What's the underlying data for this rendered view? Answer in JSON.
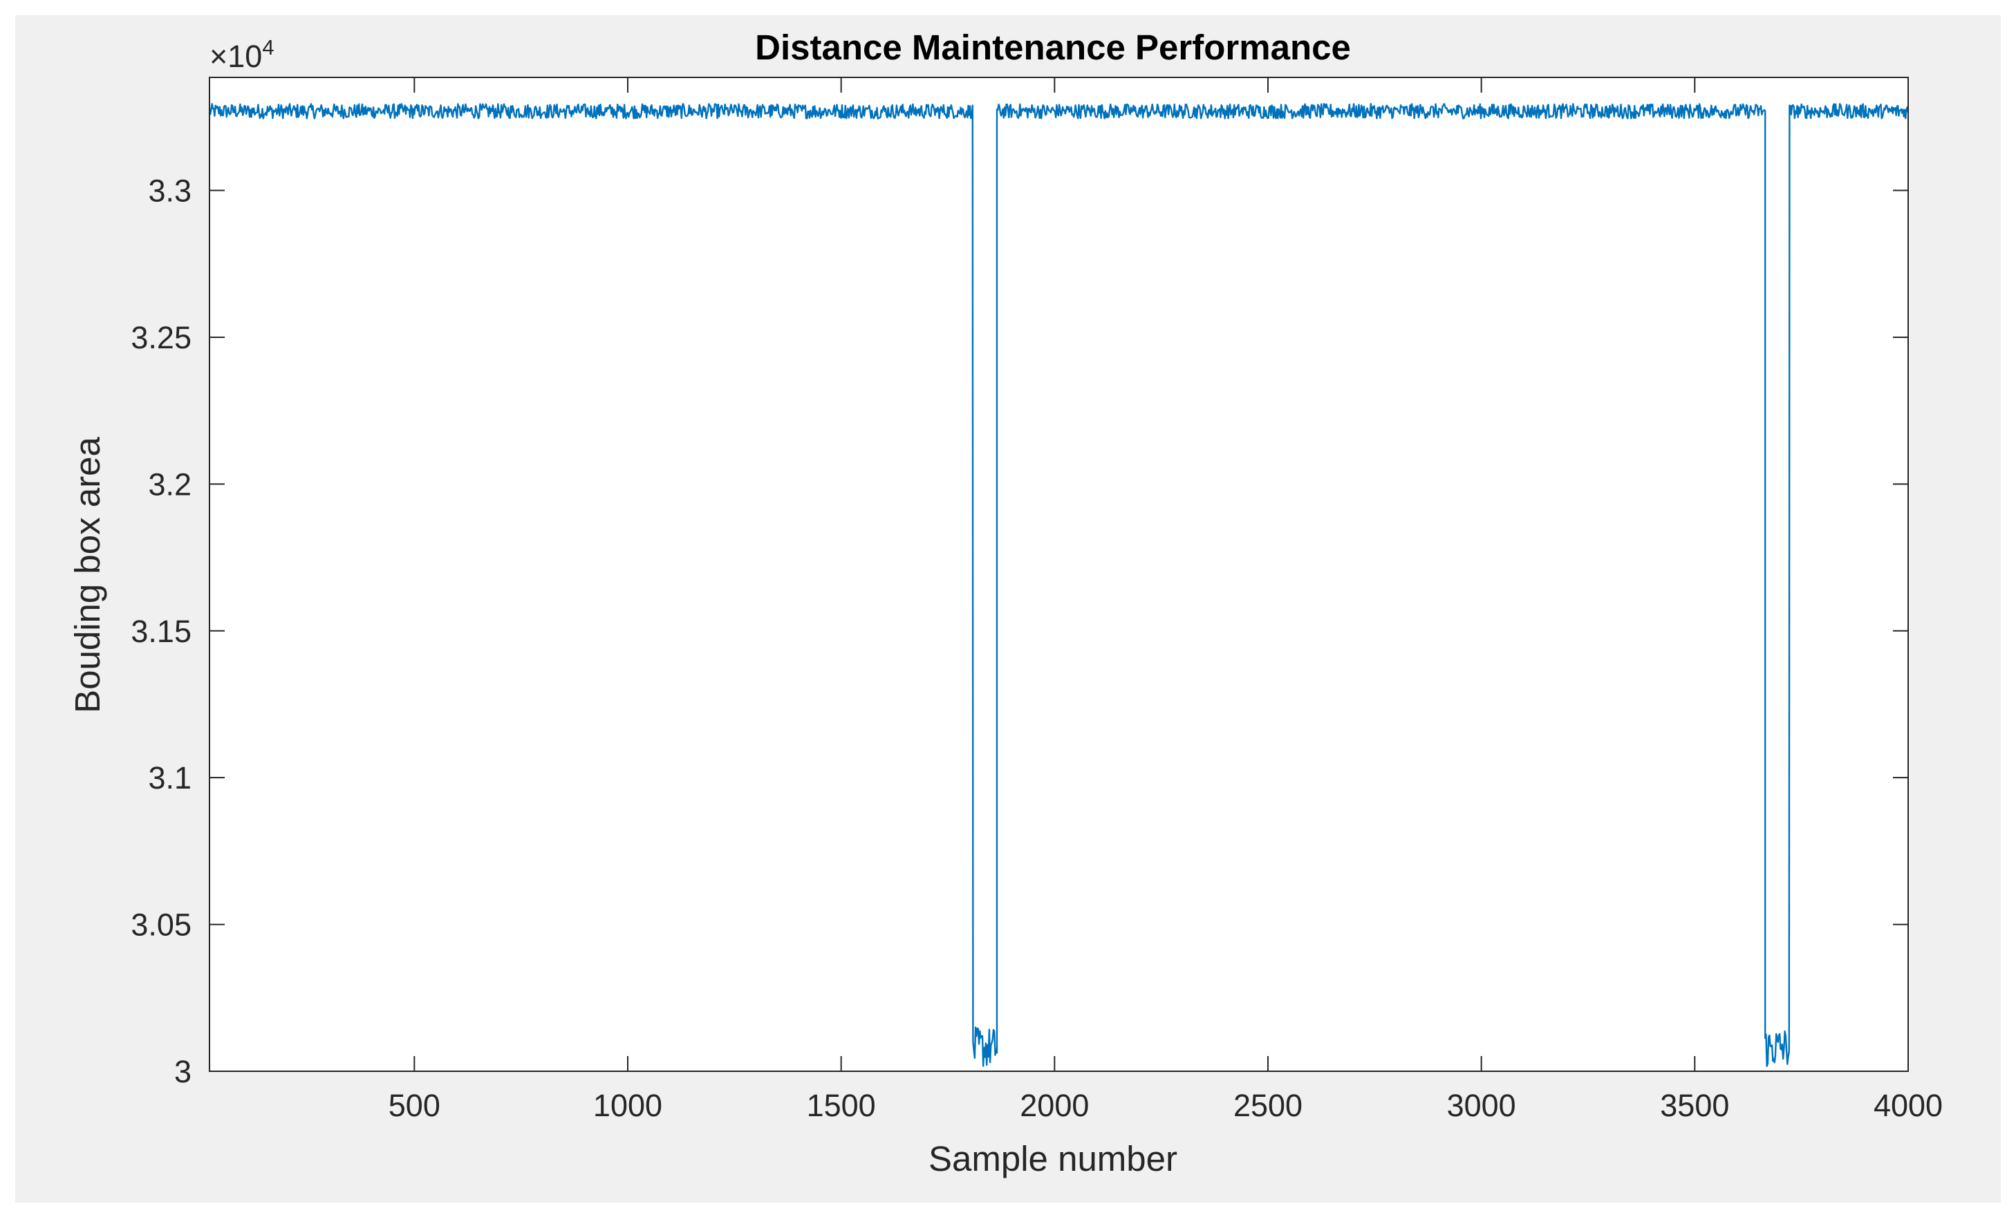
{
  "chart_data": {
    "type": "line",
    "title": "Distance Maintenance Performance",
    "xlabel": "Sample number",
    "ylabel": "Bouding box area",
    "xlim": [
      20,
      4000
    ],
    "ylim": [
      30000,
      33385
    ],
    "x_ticks": [
      500,
      1000,
      1500,
      2000,
      2500,
      3000,
      3500,
      4000
    ],
    "x_tick_labels": [
      "500",
      "1000",
      "1500",
      "2000",
      "2500",
      "3000",
      "3500",
      "4000"
    ],
    "y_ticks": [
      30000,
      30500,
      31000,
      31500,
      32000,
      32500,
      33000
    ],
    "y_tick_labels": [
      "3",
      "3.05",
      "3.1",
      "3.15",
      "3.2",
      "3.25",
      "3.3"
    ],
    "y_exponent_label": {
      "base": "×10",
      "power": "4"
    },
    "grid": false,
    "legend": "none",
    "series": [
      {
        "color": "#0072bd",
        "segments": [
          {
            "x_start": 20,
            "x_end": 1809,
            "y_mean": 33270,
            "y_noise": 25
          },
          {
            "x_start": 1809,
            "x_end": 1865,
            "y_mean": 30080,
            "y_noise": 70
          },
          {
            "x_start": 1865,
            "x_end": 3665,
            "y_mean": 33270,
            "y_noise": 25
          },
          {
            "x_start": 3665,
            "x_end": 3722,
            "y_mean": 30080,
            "y_noise": 70
          },
          {
            "x_start": 3722,
            "x_end": 4000,
            "y_mean": 33270,
            "y_noise": 25
          }
        ]
      }
    ]
  },
  "colors": {
    "figure_background": "#f0f0f0",
    "axes_background": "#ffffff",
    "axis_color": "#262626",
    "line_color": "#0072bd"
  }
}
